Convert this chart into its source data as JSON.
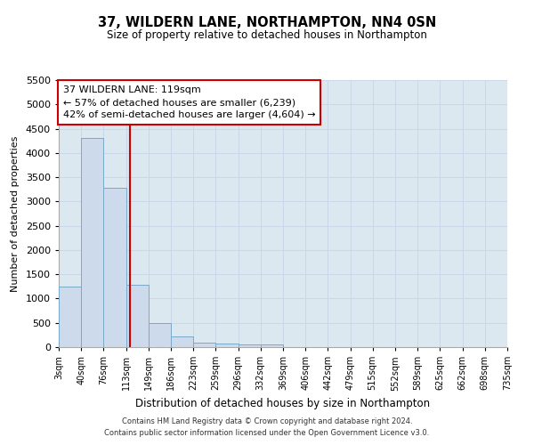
{
  "title": "37, WILDERN LANE, NORTHAMPTON, NN4 0SN",
  "subtitle": "Size of property relative to detached houses in Northampton",
  "xlabel": "Distribution of detached houses by size in Northampton",
  "ylabel": "Number of detached properties",
  "footer_line1": "Contains HM Land Registry data © Crown copyright and database right 2024.",
  "footer_line2": "Contains public sector information licensed under the Open Government Licence v3.0.",
  "bin_edges": [
    3,
    40,
    76,
    113,
    149,
    186,
    223,
    259,
    296,
    332,
    369,
    406,
    442,
    479,
    515,
    552,
    589,
    625,
    662,
    698,
    735
  ],
  "bar_heights": [
    1250,
    4300,
    3280,
    1280,
    490,
    220,
    90,
    70,
    55,
    55,
    0,
    0,
    0,
    0,
    0,
    0,
    0,
    0,
    0,
    0
  ],
  "bar_color": "#ccdaeb",
  "bar_edge_color": "#7aaac8",
  "property_line_x": 119,
  "property_line_color": "#cc0000",
  "annotation_text": "37 WILDERN LANE: 119sqm\n← 57% of detached houses are smaller (6,239)\n42% of semi-detached houses are larger (4,604) →",
  "annotation_box_color": "#ffffff",
  "annotation_box_edge_color": "#cc0000",
  "xlim": [
    3,
    735
  ],
  "ylim": [
    0,
    5500
  ],
  "yticks": [
    0,
    500,
    1000,
    1500,
    2000,
    2500,
    3000,
    3500,
    4000,
    4500,
    5000,
    5500
  ],
  "xtick_labels": [
    "3sqm",
    "40sqm",
    "76sqm",
    "113sqm",
    "149sqm",
    "186sqm",
    "223sqm",
    "259sqm",
    "296sqm",
    "332sqm",
    "369sqm",
    "406sqm",
    "442sqm",
    "479sqm",
    "515sqm",
    "552sqm",
    "589sqm",
    "625sqm",
    "662sqm",
    "698sqm",
    "735sqm"
  ],
  "grid_color": "#c8d8e8",
  "background_color": "#dce8f0",
  "fig_background": "#ffffff"
}
